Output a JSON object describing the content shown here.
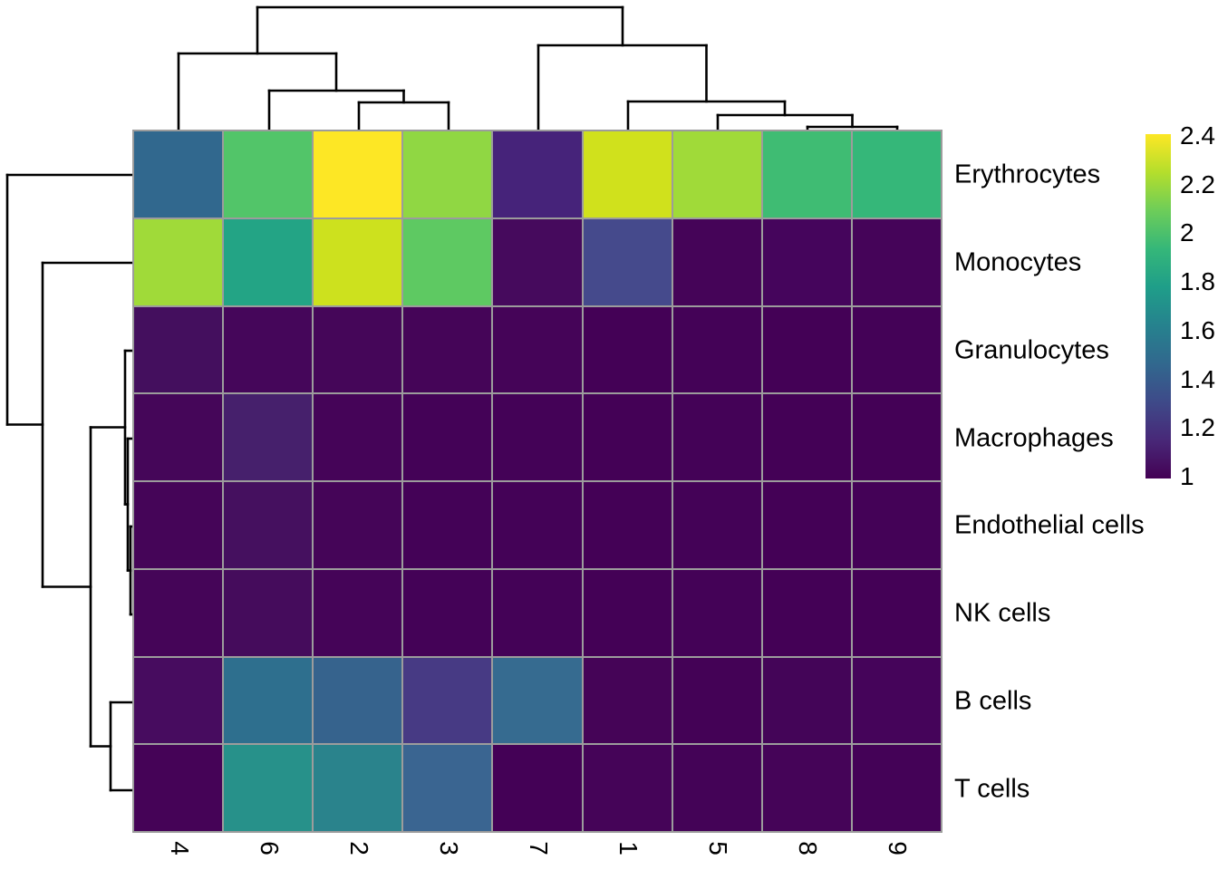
{
  "figure": {
    "kind": "clustered-heatmap",
    "background": "#ffffff",
    "grid_color": "#9c9c9c",
    "dendrogram_line_color": "#000000"
  },
  "heatmap": {
    "columns": [
      "4",
      "6",
      "2",
      "3",
      "7",
      "1",
      "5",
      "8",
      "9"
    ],
    "rows": [
      "Erythrocytes",
      "Monocytes",
      "Granulocytes",
      "Macrophages",
      "Endothelial cells",
      "NK cells",
      "B cells",
      "T cells"
    ],
    "cell_colors": [
      [
        "#31688e",
        "#52c569",
        "#fde725",
        "#90d743",
        "#46237a",
        "#d0e11c",
        "#a0da39",
        "#3fbc73",
        "#35b779"
      ],
      [
        "#a0da39",
        "#23a485",
        "#cde11e",
        "#5ec962",
        "#460a5d",
        "#454a8c",
        "#450458",
        "#45055c",
        "#450459"
      ],
      [
        "#440f5e",
        "#45065a",
        "#450659",
        "#450558",
        "#450458",
        "#440156",
        "#440257",
        "#440156",
        "#440257"
      ],
      [
        "#450659",
        "#46206c",
        "#450458",
        "#440257",
        "#440257",
        "#440156",
        "#440257",
        "#440156",
        "#440156"
      ],
      [
        "#450558",
        "#45105f",
        "#450558",
        "#440257",
        "#440257",
        "#440156",
        "#440257",
        "#440156",
        "#440257"
      ],
      [
        "#450558",
        "#450c5c",
        "#450458",
        "#440257",
        "#440257",
        "#440156",
        "#440257",
        "#440156",
        "#440156"
      ],
      [
        "#470c5f",
        "#2e6f8e",
        "#36638d",
        "#473a84",
        "#366b90",
        "#450457",
        "#440256",
        "#440558",
        "#45045a"
      ],
      [
        "#450357",
        "#27918a",
        "#2a838c",
        "#3a6591",
        "#440156",
        "#450458",
        "#440357",
        "#450458",
        "#440257"
      ]
    ]
  },
  "colorbar": {
    "min": 1,
    "max": 2.4,
    "ticks": [
      "2.4",
      "2.2",
      "2",
      "1.8",
      "1.6",
      "1.4",
      "1.2",
      "1"
    ],
    "gradient_bottom_to_top": [
      "#440154",
      "#482878",
      "#3e4a89",
      "#31688e",
      "#26828e",
      "#1f9e89",
      "#35b779",
      "#6dcd59",
      "#b4de2c",
      "#fde725"
    ]
  },
  "dendrograms": {
    "top_segments": [
      [
        197,
        145,
        197,
        59
      ],
      [
        297,
        145,
        297,
        100
      ],
      [
        396,
        145,
        396,
        113
      ],
      [
        495,
        145,
        495,
        113
      ],
      [
        594,
        145,
        594,
        50
      ],
      [
        693,
        145,
        693,
        112
      ],
      [
        792,
        145,
        792,
        127
      ],
      [
        891,
        145,
        891,
        140
      ],
      [
        990,
        145,
        990,
        140
      ],
      [
        396,
        113,
        495,
        113
      ],
      [
        445.5,
        113,
        445.5,
        100
      ],
      [
        297,
        100,
        445.5,
        100
      ],
      [
        371,
        100,
        371,
        59
      ],
      [
        197,
        59,
        371,
        59
      ],
      [
        284,
        59,
        284,
        8
      ],
      [
        891,
        140,
        990,
        140
      ],
      [
        940.5,
        140,
        940.5,
        127
      ],
      [
        792,
        127,
        940.5,
        127
      ],
      [
        866,
        127,
        866,
        112
      ],
      [
        693,
        112,
        866,
        112
      ],
      [
        779.5,
        112,
        779.5,
        50
      ],
      [
        594,
        50,
        779.5,
        50
      ],
      [
        687,
        50,
        687,
        8
      ],
      [
        284,
        8,
        687,
        8
      ]
    ],
    "left_segments": [
      [
        8,
        193,
        148,
        193
      ],
      [
        47,
        290,
        148,
        290
      ],
      [
        138,
        387,
        148,
        387
      ],
      [
        141,
        484,
        148,
        484
      ],
      [
        144,
        581,
        148,
        581
      ],
      [
        144,
        678,
        148,
        678
      ],
      [
        122,
        775,
        148,
        775
      ],
      [
        122,
        872,
        148,
        872
      ],
      [
        144,
        581,
        144,
        678
      ],
      [
        141,
        629.5,
        144,
        629.5
      ],
      [
        141,
        484,
        141,
        629.5
      ],
      [
        138,
        556.5,
        141,
        556.5
      ],
      [
        138,
        387,
        138,
        556.5
      ],
      [
        100,
        471.5,
        138,
        471.5
      ],
      [
        122,
        775,
        122,
        872
      ],
      [
        100,
        823.5,
        122,
        823.5
      ],
      [
        100,
        471.5,
        100,
        823.5
      ],
      [
        47,
        647.5,
        100,
        647.5
      ],
      [
        47,
        290,
        47,
        647.5
      ],
      [
        8,
        468.5,
        47,
        468.5
      ],
      [
        8,
        193,
        8,
        468.5
      ]
    ]
  },
  "chart_data": {
    "type": "heatmap",
    "title": "",
    "x_categories_left_to_right": [
      "4",
      "6",
      "2",
      "3",
      "7",
      "1",
      "5",
      "8",
      "9"
    ],
    "y_categories_top_to_bottom": [
      "Erythrocytes",
      "Monocytes",
      "Granulocytes",
      "Macrophages",
      "Endothelial cells",
      "NK cells",
      "B cells",
      "T cells"
    ],
    "values": [
      [
        1.5,
        2.05,
        2.4,
        2.15,
        1.15,
        2.3,
        2.2,
        2.0,
        1.95
      ],
      [
        2.2,
        1.8,
        2.3,
        2.05,
        1.05,
        1.3,
        1.0,
        1.05,
        1.0
      ],
      [
        1.05,
        1.02,
        1.02,
        1.0,
        1.0,
        1.0,
        1.0,
        1.0,
        1.0
      ],
      [
        1.0,
        1.2,
        1.0,
        1.0,
        1.0,
        1.0,
        1.0,
        1.0,
        1.0
      ],
      [
        1.0,
        1.05,
        1.0,
        1.0,
        1.0,
        1.0,
        1.0,
        1.0,
        1.0
      ],
      [
        1.0,
        1.05,
        1.0,
        1.0,
        1.0,
        1.0,
        1.0,
        1.0,
        1.0
      ],
      [
        1.05,
        1.55,
        1.45,
        1.3,
        1.5,
        1.0,
        1.0,
        1.0,
        1.0
      ],
      [
        1.0,
        1.7,
        1.6,
        1.5,
        1.0,
        1.0,
        1.0,
        1.0,
        1.0
      ]
    ],
    "colormap": "viridis",
    "color_scale_range": [
      1,
      2.4
    ],
    "legend_position": "right",
    "row_dendrogram": "((Erythrocytes,(Monocytes,((Granulocytes,(Macrophages,(Endothelial cells,NK cells))),(B cells,T cells)))))",
    "column_dendrogram": "((4,(6,(2,3))),(7,(1,(5,(8,9)))))",
    "grid": true
  }
}
